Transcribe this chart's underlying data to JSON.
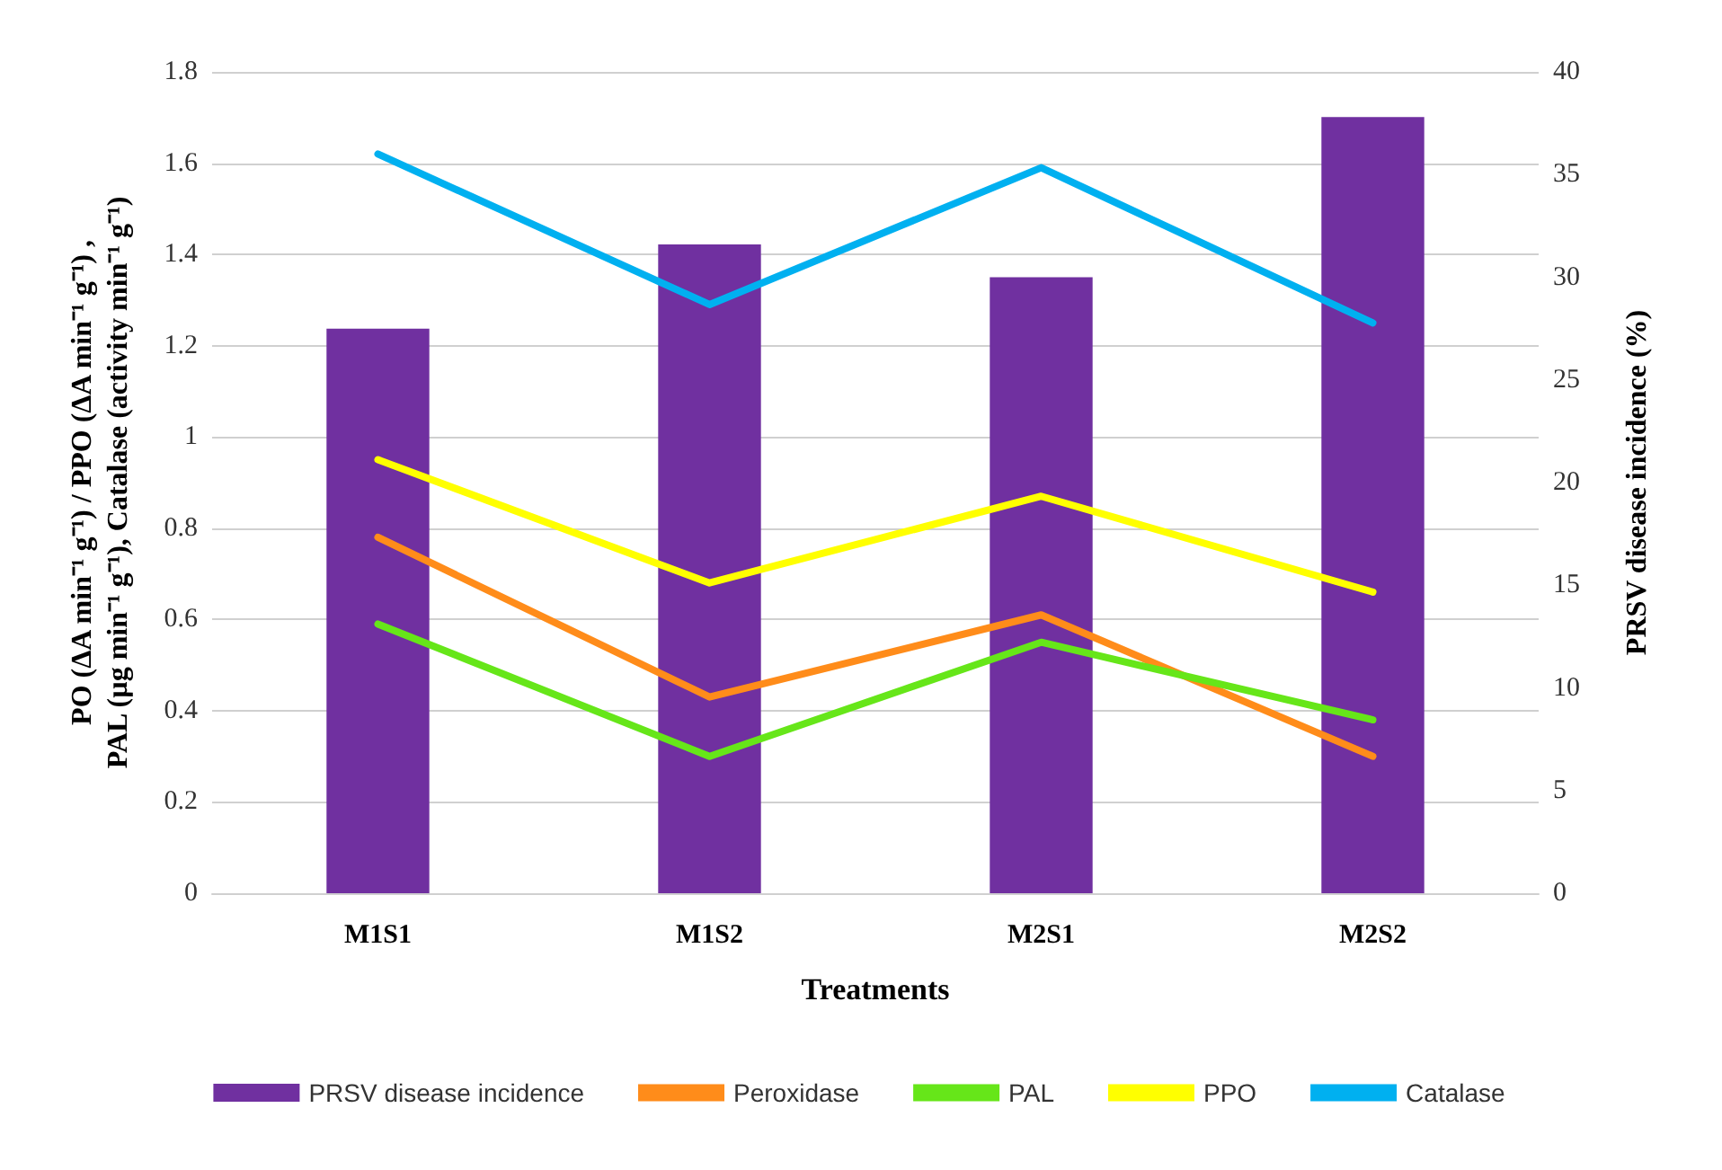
{
  "chart_data": {
    "type": "bar",
    "xlabel": "Treatments",
    "ylabel": "PO (ΔA min⁻¹ g⁻¹) / PPO (ΔA min⁻¹ g⁻¹) ,\nPAL (µg min⁻¹ g⁻¹), Catalase (activity min⁻¹ g⁻¹)",
    "y2label": "PRSV disease incidence (%)",
    "categories": [
      "M1S1",
      "M1S2",
      "M2S1",
      "M2S2"
    ],
    "series": [
      {
        "name": "PRSV disease incidence",
        "axis": "y2",
        "color": "#7030a0",
        "values": [
          27.5,
          31.6,
          30.0,
          37.8
        ]
      },
      {
        "name": "Peroxidase",
        "type": "line",
        "color": "#ff8c1a",
        "values": [
          0.78,
          0.43,
          0.61,
          0.3
        ]
      },
      {
        "name": "PAL",
        "type": "line",
        "color": "#66e619",
        "values": [
          0.59,
          0.3,
          0.55,
          0.38
        ]
      },
      {
        "name": "PPO",
        "type": "line",
        "color": "#ffff00",
        "values": [
          0.95,
          0.68,
          0.87,
          0.66
        ]
      },
      {
        "name": "Catalase",
        "type": "line",
        "color": "#00b0f0",
        "values": [
          1.62,
          1.29,
          1.59,
          1.25
        ]
      }
    ],
    "ylim": [
      0,
      1.8
    ],
    "yticks": [
      0,
      0.2,
      0.4,
      0.6,
      0.8,
      1,
      1.2,
      1.4,
      1.6,
      1.8
    ],
    "y2lim": [
      0,
      40
    ],
    "y2ticks": [
      0,
      5,
      10,
      15,
      20,
      25,
      30,
      35,
      40
    ],
    "grid": "y",
    "legend": "bottom",
    "marker": "none",
    "line_style": "solid"
  }
}
